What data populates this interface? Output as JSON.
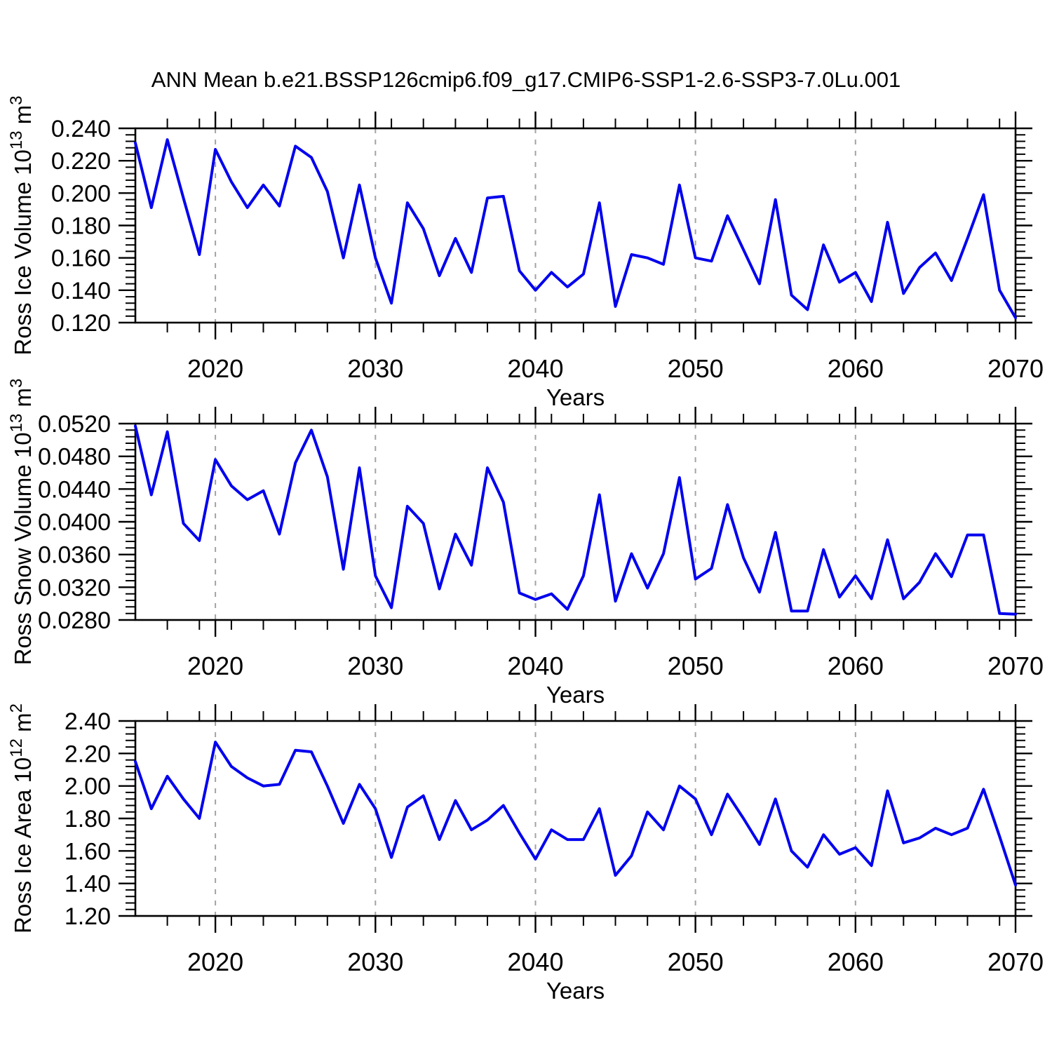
{
  "title": "ANN Mean b.e21.BSSP126cmip6.f09_g17.CMIP6-SSP1-2.6-SSP3-7.0Lu.001",
  "line_color": "#0202ee",
  "grid_color": "#a3a3a3",
  "frame_color": "#000000",
  "chart_data": [
    {
      "type": "line",
      "ylabel": "Ross Ice Volume 10^13 m^3",
      "ylabel_segments": [
        {
          "t": "Ross Ice Volume 10"
        },
        {
          "t": "13",
          "sup": true
        },
        {
          "t": " m"
        },
        {
          "t": "3",
          "sup": true
        }
      ],
      "xlabel": "Years",
      "x_start": 2015,
      "x_end": 2070,
      "x_step": 1,
      "x_minor_step": 2,
      "xtick_years": [
        2020,
        2030,
        2040,
        2050,
        2060,
        2070
      ],
      "xtick_labels": [
        "2020",
        "2030",
        "2040",
        "2050",
        "2060",
        "2070"
      ],
      "grid_years": [
        2020,
        2030,
        2040,
        2050,
        2060
      ],
      "ylim": [
        0.12,
        0.24
      ],
      "ytick_values": [
        0.24,
        0.22,
        0.2,
        0.18,
        0.16,
        0.14,
        0.12
      ],
      "ytick_labels": [
        "0.240",
        "0.220",
        "0.200",
        "0.180",
        "0.160",
        "0.140",
        "0.120"
      ],
      "y_minor_step": 0.004,
      "grid": "x-dashed",
      "legend": "none",
      "values": [
        0.231,
        0.191,
        0.233,
        0.197,
        0.162,
        0.227,
        0.207,
        0.191,
        0.205,
        0.192,
        0.229,
        0.222,
        0.201,
        0.16,
        0.205,
        0.16,
        0.132,
        0.194,
        0.178,
        0.149,
        0.172,
        0.151,
        0.197,
        0.198,
        0.152,
        0.14,
        0.151,
        0.142,
        0.15,
        0.194,
        0.13,
        0.162,
        0.16,
        0.156,
        0.205,
        0.16,
        0.158,
        0.186,
        0.165,
        0.144,
        0.196,
        0.137,
        0.128,
        0.168,
        0.145,
        0.151,
        0.133,
        0.182,
        0.138,
        0.154,
        0.163,
        0.146,
        0.172,
        0.199,
        0.14,
        0.123
      ]
    },
    {
      "type": "line",
      "ylabel": "Ross Snow Volume 10^13 m^3",
      "ylabel_segments": [
        {
          "t": "Ross Snow Volume 10"
        },
        {
          "t": "13",
          "sup": true
        },
        {
          "t": " m"
        },
        {
          "t": "3",
          "sup": true
        }
      ],
      "xlabel": "Years",
      "x_start": 2015,
      "x_end": 2070,
      "x_step": 1,
      "x_minor_step": 2,
      "xtick_years": [
        2020,
        2030,
        2040,
        2050,
        2060,
        2070
      ],
      "xtick_labels": [
        "2020",
        "2030",
        "2040",
        "2050",
        "2060",
        "2070"
      ],
      "grid_years": [
        2020,
        2030,
        2040,
        2050,
        2060
      ],
      "ylim": [
        0.028,
        0.052
      ],
      "ytick_values": [
        0.052,
        0.048,
        0.044,
        0.04,
        0.036,
        0.032,
        0.028
      ],
      "ytick_labels": [
        "0.0520",
        "0.0480",
        "0.0440",
        "0.0400",
        "0.0360",
        "0.0320",
        "0.0280"
      ],
      "y_minor_step": 0.0008,
      "grid": "x-dashed",
      "legend": "none",
      "values": [
        0.0517,
        0.0433,
        0.051,
        0.0398,
        0.0377,
        0.0476,
        0.0444,
        0.0427,
        0.0438,
        0.0385,
        0.0472,
        0.0512,
        0.0455,
        0.0342,
        0.0466,
        0.0334,
        0.0295,
        0.0419,
        0.0398,
        0.0318,
        0.0385,
        0.0347,
        0.0466,
        0.0424,
        0.0313,
        0.0305,
        0.0312,
        0.0293,
        0.0334,
        0.0433,
        0.0303,
        0.0361,
        0.0319,
        0.0361,
        0.0454,
        0.033,
        0.0343,
        0.0421,
        0.0356,
        0.0314,
        0.0387,
        0.0291,
        0.0291,
        0.0366,
        0.0308,
        0.0334,
        0.0306,
        0.0378,
        0.0306,
        0.0326,
        0.0361,
        0.0333,
        0.0384,
        0.0384,
        0.0288,
        0.0287
      ]
    },
    {
      "type": "line",
      "ylabel": "Ross Ice Area 10^12 m^2",
      "ylabel_segments": [
        {
          "t": "Ross Ice Area 10"
        },
        {
          "t": "12",
          "sup": true
        },
        {
          "t": " m"
        },
        {
          "t": "2",
          "sup": true
        }
      ],
      "xlabel": "Years",
      "x_start": 2015,
      "x_end": 2070,
      "x_step": 1,
      "x_minor_step": 2,
      "xtick_years": [
        2020,
        2030,
        2040,
        2050,
        2060,
        2070
      ],
      "xtick_labels": [
        "2020",
        "2030",
        "2040",
        "2050",
        "2060",
        "2070"
      ],
      "grid_years": [
        2020,
        2030,
        2040,
        2050,
        2060
      ],
      "ylim": [
        1.2,
        2.4
      ],
      "ytick_values": [
        2.4,
        2.2,
        2.0,
        1.8,
        1.6,
        1.4,
        1.2
      ],
      "ytick_labels": [
        "2.40",
        "2.20",
        "2.00",
        "1.80",
        "1.60",
        "1.40",
        "1.20"
      ],
      "y_minor_step": 0.04,
      "grid": "x-dashed",
      "legend": "none",
      "values": [
        2.15,
        1.86,
        2.06,
        1.92,
        1.8,
        2.27,
        2.12,
        2.05,
        2.0,
        2.01,
        2.22,
        2.21,
        2.0,
        1.77,
        2.01,
        1.86,
        1.56,
        1.87,
        1.94,
        1.67,
        1.91,
        1.73,
        1.79,
        1.88,
        1.71,
        1.55,
        1.73,
        1.67,
        1.67,
        1.86,
        1.45,
        1.57,
        1.84,
        1.73,
        2.0,
        1.92,
        1.7,
        1.95,
        1.8,
        1.64,
        1.92,
        1.6,
        1.5,
        1.7,
        1.58,
        1.62,
        1.51,
        1.97,
        1.65,
        1.68,
        1.74,
        1.7,
        1.74,
        1.98,
        1.69,
        1.39
      ]
    }
  ]
}
